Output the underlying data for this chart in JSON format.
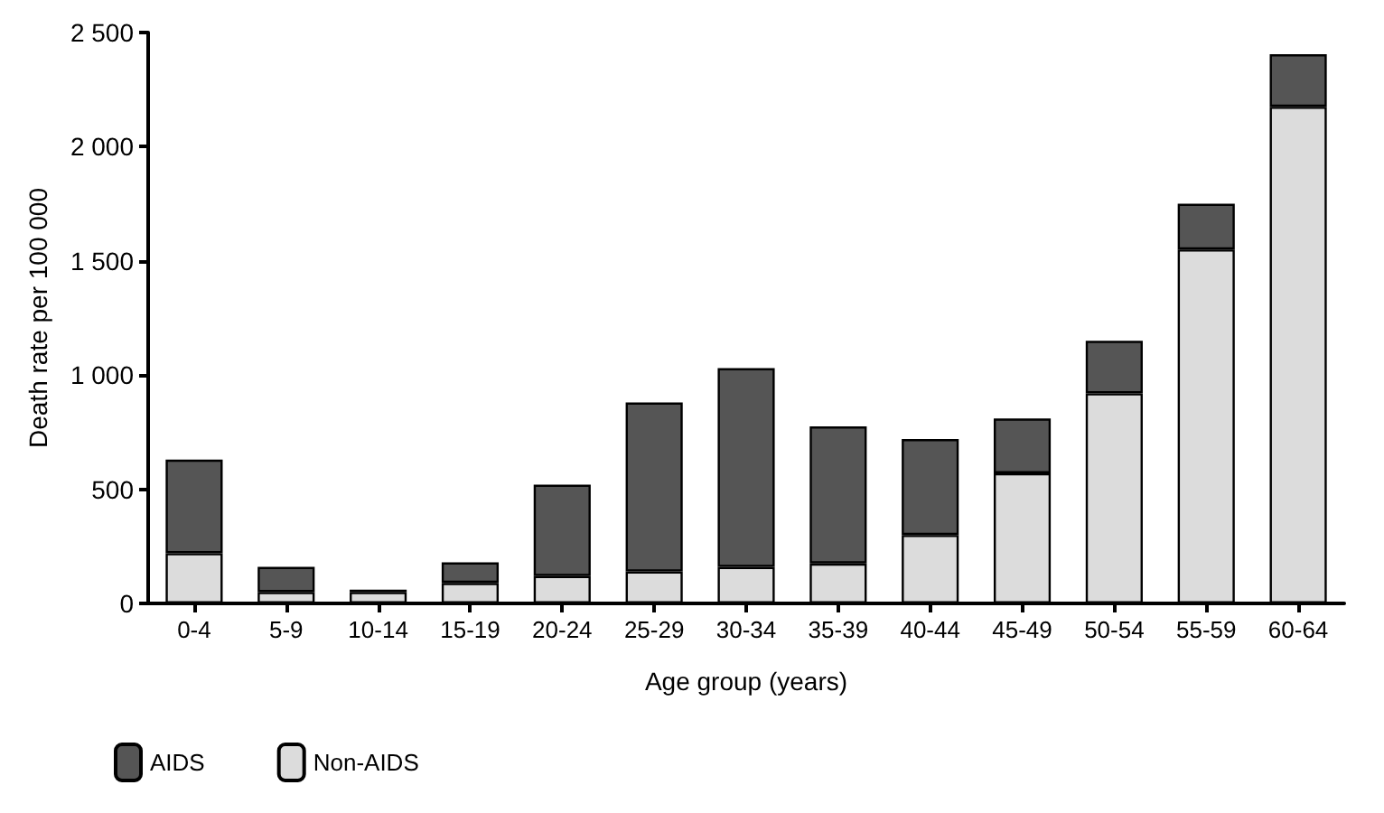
{
  "chart_data": {
    "type": "bar",
    "xlabel": "Age group (years)",
    "ylabel": "Death rate per 100 000",
    "categories": [
      "0-4",
      "5-9",
      "10-14",
      "15-19",
      "20-24",
      "25-29",
      "30-34",
      "35-39",
      "40-44",
      "45-49",
      "50-54",
      "55-59",
      "60-64"
    ],
    "stacked": true,
    "series": [
      {
        "name": "Non-AIDS",
        "color": "#dcdcdc",
        "values": [
          220,
          50,
          50,
          90,
          120,
          140,
          160,
          175,
          300,
          570,
          920,
          1550,
          2175
        ]
      },
      {
        "name": "AIDS",
        "color": "#555555",
        "values": [
          410,
          110,
          10,
          90,
          400,
          740,
          870,
          600,
          420,
          240,
          230,
          200,
          230
        ]
      }
    ],
    "ylim": [
      0,
      2500
    ],
    "yticks": [
      0,
      500,
      {
        "value": 1000,
        "label": "1 000"
      },
      {
        "value": 1500,
        "label": "1 500"
      },
      {
        "value": 2000,
        "label": "2 000"
      },
      {
        "value": 2500,
        "label": "2 500"
      }
    ],
    "grid": false,
    "legend": "bottom left"
  }
}
